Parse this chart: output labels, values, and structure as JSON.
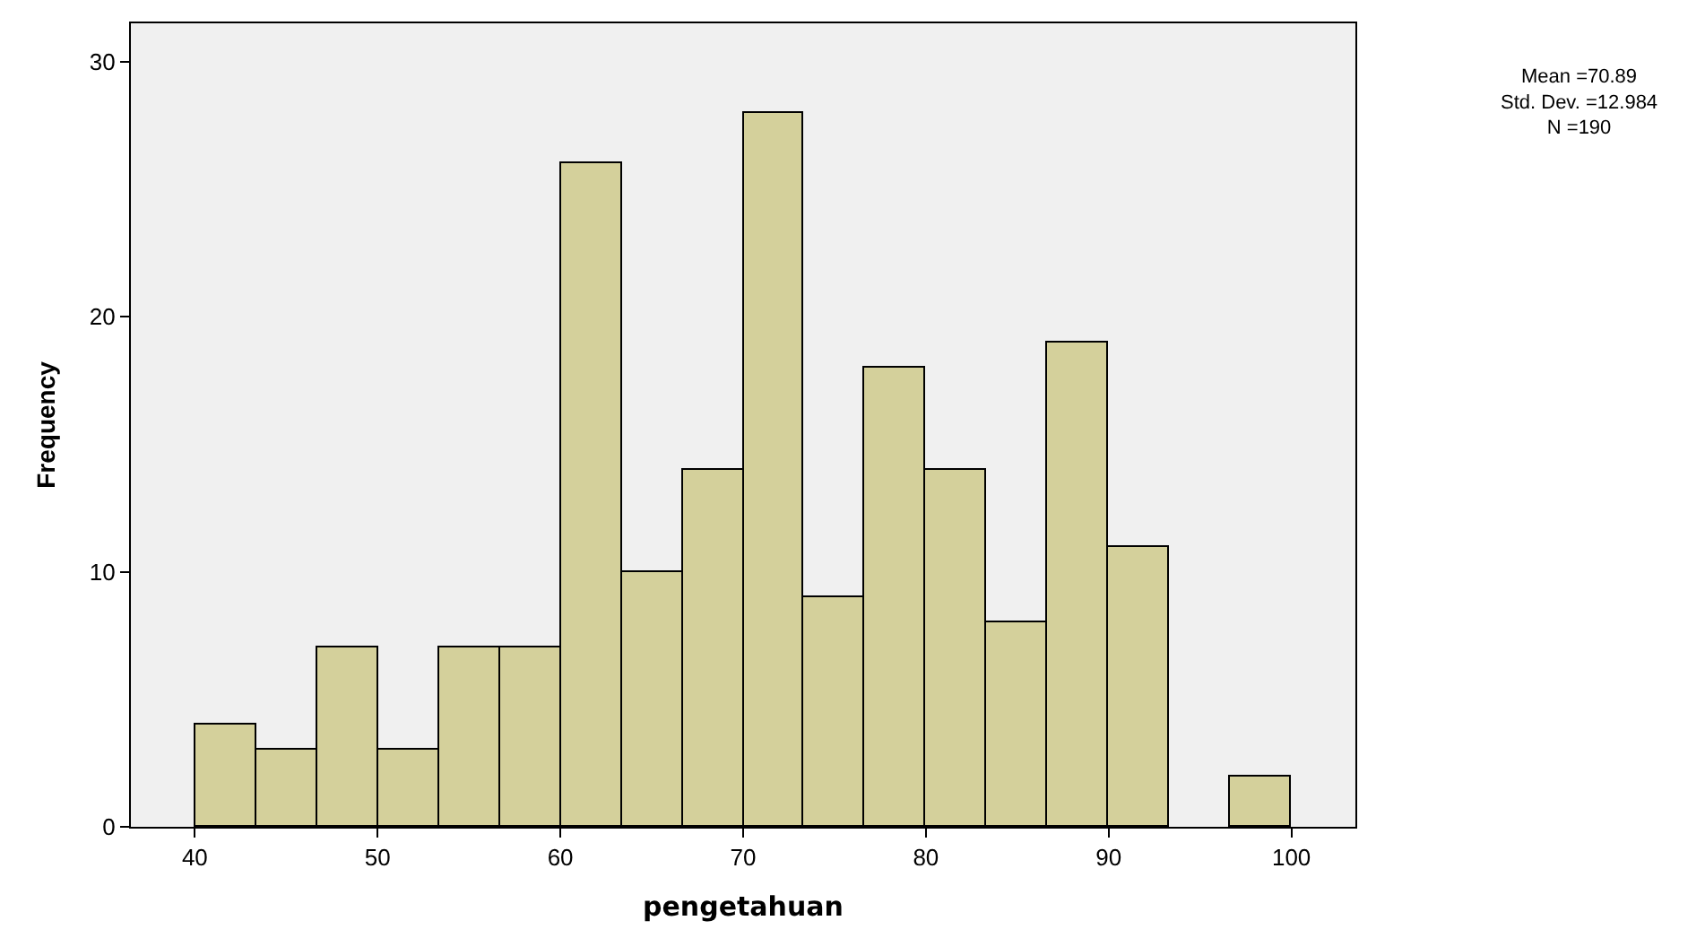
{
  "chart_data": {
    "type": "histogram",
    "xlabel": "pengetahuan",
    "ylabel": "Frequency",
    "bins": [
      40,
      43.33,
      46.67,
      50,
      53.33,
      56.67,
      60,
      63.33,
      66.67,
      70,
      73.33,
      76.67,
      80,
      83.33,
      86.67,
      90,
      93.33,
      96.67,
      100
    ],
    "values": [
      4,
      3,
      7,
      3,
      7,
      7,
      26,
      10,
      14,
      28,
      9,
      18,
      14,
      8,
      19,
      11,
      0,
      2
    ],
    "color": "#d4d09b",
    "xlim": [
      36.5,
      103.5
    ],
    "xticks": [
      40,
      50,
      60,
      70,
      80,
      90,
      100
    ],
    "ylim": [
      0,
      31.5
    ],
    "yticks": [
      0,
      10,
      20,
      30
    ],
    "grid": false,
    "annotations": [
      "Mean =70.89\nStd. Dev. =12.984\nN =190"
    ]
  }
}
